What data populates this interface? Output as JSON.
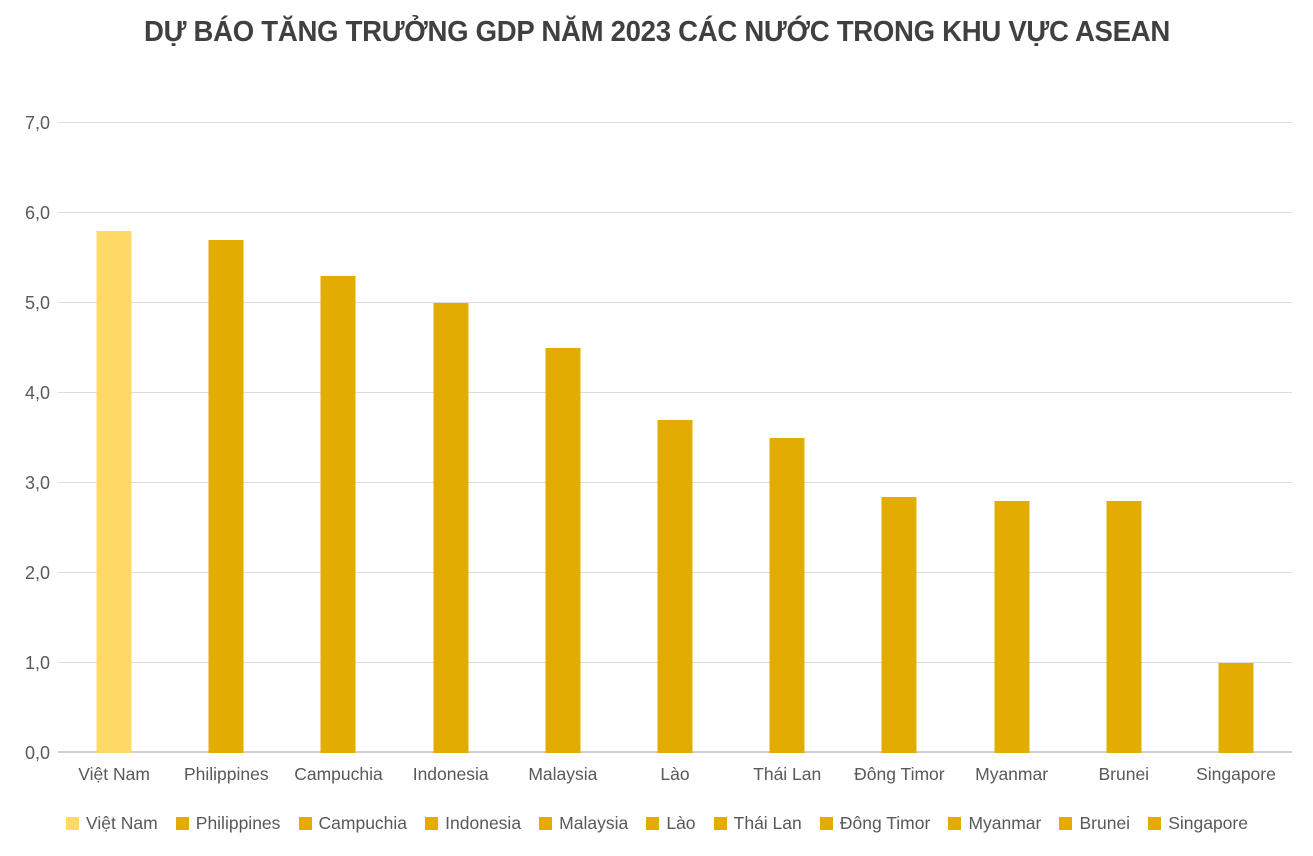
{
  "chart_data": {
    "type": "bar",
    "title": "DỰ BÁO TĂNG TRƯỞNG GDP NĂM 2023 CÁC NƯỚC TRONG KHU VỰC ASEAN",
    "categories": [
      "Việt Nam",
      "Philippines",
      "Campuchia",
      "Indonesia",
      "Malaysia",
      "Lào",
      "Thái Lan",
      "Đông Timor",
      "Myanmar",
      "Brunei",
      "Singapore"
    ],
    "values": [
      5.8,
      5.7,
      5.3,
      5.0,
      4.5,
      3.7,
      3.5,
      2.85,
      2.8,
      2.8,
      1.0
    ],
    "xlabel": "",
    "ylabel": "",
    "ylim": [
      0,
      7
    ],
    "ytick_step": 1,
    "ytick_labels": [
      "0,0",
      "1,0",
      "2,0",
      "3,0",
      "4,0",
      "5,0",
      "6,0",
      "7,0"
    ],
    "grid": true,
    "legend_position": "bottom",
    "legend": [
      "Việt Nam",
      "Philippines",
      "Campuchia",
      "Indonesia",
      "Malaysia",
      "Lào",
      "Thái Lan",
      "Đông Timor",
      "Myanmar",
      "Brunei",
      "Singapore"
    ],
    "highlight_index": 0,
    "colors": {
      "bar_default": "#E2AC00",
      "bar_highlight": "#FFD966",
      "gridline": "#DCDCDC",
      "baseline": "#D0D0D0",
      "axis_text": "#595959",
      "title_text": "#404040",
      "background": "#FFFFFF"
    }
  }
}
